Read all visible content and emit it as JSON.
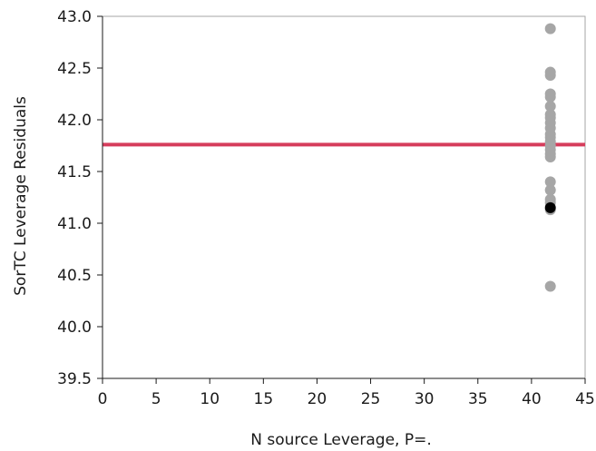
{
  "chart_data": {
    "type": "scatter",
    "title": "",
    "xlabel": "N source Leverage, P=.",
    "ylabel": "SorTC Leverage Residuals",
    "xlim": [
      0,
      45
    ],
    "ylim": [
      39.5,
      43.0
    ],
    "x_ticks": [
      "0",
      "5",
      "10",
      "15",
      "20",
      "25",
      "30",
      "35",
      "40",
      "45"
    ],
    "y_ticks": [
      "39.5",
      "40.0",
      "40.5",
      "41.0",
      "41.5",
      "42.0",
      "42.5",
      "43.0"
    ],
    "grid": false,
    "reference_line": {
      "y": 41.76,
      "color": "#d63d5c"
    },
    "colors": {
      "points": "#a6a6a6",
      "highlight": "#000000",
      "frame": "#a6a6a6"
    },
    "points": [
      {
        "x": 41.76,
        "y": 42.88
      },
      {
        "x": 41.76,
        "y": 42.46
      },
      {
        "x": 41.76,
        "y": 42.43
      },
      {
        "x": 41.76,
        "y": 42.25
      },
      {
        "x": 41.76,
        "y": 42.22
      },
      {
        "x": 41.76,
        "y": 42.13
      },
      {
        "x": 41.76,
        "y": 42.05
      },
      {
        "x": 41.76,
        "y": 42.02
      },
      {
        "x": 41.76,
        "y": 41.97
      },
      {
        "x": 41.76,
        "y": 41.92
      },
      {
        "x": 41.76,
        "y": 41.86
      },
      {
        "x": 41.76,
        "y": 41.83
      },
      {
        "x": 41.76,
        "y": 41.79
      },
      {
        "x": 41.76,
        "y": 41.75
      },
      {
        "x": 41.76,
        "y": 41.71
      },
      {
        "x": 41.76,
        "y": 41.67
      },
      {
        "x": 41.76,
        "y": 41.64
      },
      {
        "x": 41.76,
        "y": 41.4
      },
      {
        "x": 41.76,
        "y": 41.32
      },
      {
        "x": 41.76,
        "y": 41.23
      },
      {
        "x": 41.76,
        "y": 41.2
      },
      {
        "x": 41.76,
        "y": 41.13
      },
      {
        "x": 41.76,
        "y": 40.39
      }
    ],
    "highlight_points": [
      {
        "x": 41.76,
        "y": 41.15
      }
    ]
  }
}
